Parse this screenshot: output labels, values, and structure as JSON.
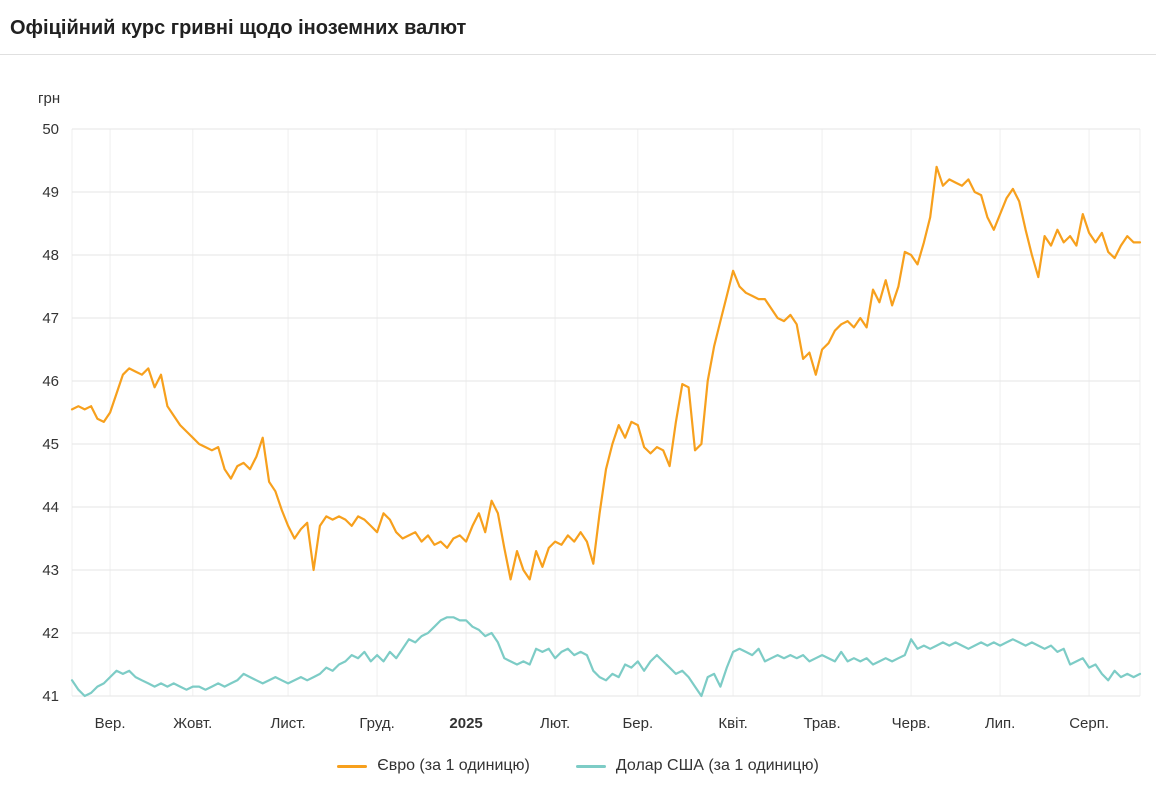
{
  "header": {
    "title": "Офіційний курс гривні щодо іноземних валют"
  },
  "chart_data": {
    "type": "line",
    "title": "Офіційний курс гривні щодо іноземних валют",
    "ylabel": "грн",
    "ylim": [
      41,
      50
    ],
    "yticks": [
      41,
      42,
      43,
      44,
      45,
      46,
      47,
      48,
      49,
      50
    ],
    "grid": true,
    "legend_position": "bottom",
    "colors": {
      "h_grid": "#e6e6e6",
      "v_grid": "#efefef",
      "tick_text": "#333333"
    },
    "x_ticks": [
      {
        "label": "Вер.",
        "index": 6,
        "bold": false
      },
      {
        "label": "Жовт.",
        "index": 19,
        "bold": false
      },
      {
        "label": "Лист.",
        "index": 34,
        "bold": false
      },
      {
        "label": "Груд.",
        "index": 48,
        "bold": false
      },
      {
        "label": "2025",
        "index": 62,
        "bold": true
      },
      {
        "label": "Лют.",
        "index": 76,
        "bold": false
      },
      {
        "label": "Бер.",
        "index": 89,
        "bold": false
      },
      {
        "label": "Квіт.",
        "index": 104,
        "bold": false
      },
      {
        "label": "Трав.",
        "index": 118,
        "bold": false
      },
      {
        "label": "Черв.",
        "index": 132,
        "bold": false
      },
      {
        "label": "Лип.",
        "index": 146,
        "bold": false
      },
      {
        "label": "Серп.",
        "index": 160,
        "bold": false
      }
    ],
    "series": [
      {
        "id": "euro",
        "name": "Євро (за 1 одиницю)",
        "color": "#f7a01d",
        "values": [
          45.55,
          45.6,
          45.55,
          45.6,
          45.4,
          45.35,
          45.5,
          45.8,
          46.1,
          46.2,
          46.15,
          46.1,
          46.2,
          45.9,
          46.1,
          45.6,
          45.45,
          45.3,
          45.2,
          45.1,
          45.0,
          44.95,
          44.9,
          44.95,
          44.6,
          44.45,
          44.65,
          44.7,
          44.6,
          44.8,
          45.1,
          44.4,
          44.25,
          43.95,
          43.7,
          43.5,
          43.65,
          43.75,
          43.0,
          43.7,
          43.85,
          43.8,
          43.85,
          43.8,
          43.7,
          43.85,
          43.8,
          43.7,
          43.6,
          43.9,
          43.8,
          43.6,
          43.5,
          43.55,
          43.6,
          43.45,
          43.55,
          43.4,
          43.45,
          43.35,
          43.5,
          43.55,
          43.45,
          43.7,
          43.9,
          43.6,
          44.1,
          43.9,
          43.35,
          42.85,
          43.3,
          43.0,
          42.85,
          43.3,
          43.05,
          43.35,
          43.45,
          43.4,
          43.55,
          43.45,
          43.6,
          43.45,
          43.1,
          43.9,
          44.6,
          45.0,
          45.3,
          45.1,
          45.35,
          45.3,
          44.95,
          44.85,
          44.95,
          44.9,
          44.65,
          45.35,
          45.95,
          45.9,
          44.9,
          45.0,
          46.0,
          46.55,
          46.95,
          47.35,
          47.75,
          47.5,
          47.4,
          47.35,
          47.3,
          47.3,
          47.15,
          47.0,
          46.95,
          47.05,
          46.9,
          46.35,
          46.45,
          46.1,
          46.5,
          46.6,
          46.8,
          46.9,
          46.95,
          46.85,
          47.0,
          46.85,
          47.45,
          47.25,
          47.6,
          47.2,
          47.5,
          48.05,
          48.0,
          47.85,
          48.2,
          48.6,
          49.4,
          49.1,
          49.2,
          49.15,
          49.1,
          49.2,
          49.0,
          48.95,
          48.6,
          48.4,
          48.65,
          48.9,
          49.05,
          48.85,
          48.4,
          48.0,
          47.65,
          48.3,
          48.15,
          48.4,
          48.2,
          48.3,
          48.15,
          48.65,
          48.35,
          48.2,
          48.35,
          48.05,
          47.95,
          48.15,
          48.3,
          48.2,
          48.2
        ]
      },
      {
        "id": "usd",
        "name": "Долар США (за 1 одиницю)",
        "color": "#7dccc6",
        "values": [
          41.25,
          41.1,
          41.0,
          41.05,
          41.15,
          41.2,
          41.3,
          41.4,
          41.35,
          41.4,
          41.3,
          41.25,
          41.2,
          41.15,
          41.2,
          41.15,
          41.2,
          41.15,
          41.1,
          41.15,
          41.15,
          41.1,
          41.15,
          41.2,
          41.15,
          41.2,
          41.25,
          41.35,
          41.3,
          41.25,
          41.2,
          41.25,
          41.3,
          41.25,
          41.2,
          41.25,
          41.3,
          41.25,
          41.3,
          41.35,
          41.45,
          41.4,
          41.5,
          41.55,
          41.65,
          41.6,
          41.7,
          41.55,
          41.65,
          41.55,
          41.7,
          41.6,
          41.75,
          41.9,
          41.85,
          41.95,
          42.0,
          42.1,
          42.2,
          42.25,
          42.25,
          42.2,
          42.2,
          42.1,
          42.05,
          41.95,
          42.0,
          41.85,
          41.6,
          41.55,
          41.5,
          41.55,
          41.5,
          41.75,
          41.7,
          41.75,
          41.6,
          41.7,
          41.75,
          41.65,
          41.7,
          41.65,
          41.4,
          41.3,
          41.25,
          41.35,
          41.3,
          41.5,
          41.45,
          41.55,
          41.4,
          41.55,
          41.65,
          41.55,
          41.45,
          41.35,
          41.4,
          41.3,
          41.15,
          41.0,
          41.3,
          41.35,
          41.15,
          41.45,
          41.7,
          41.75,
          41.7,
          41.65,
          41.75,
          41.55,
          41.6,
          41.65,
          41.6,
          41.65,
          41.6,
          41.65,
          41.55,
          41.6,
          41.65,
          41.6,
          41.55,
          41.7,
          41.55,
          41.6,
          41.55,
          41.6,
          41.5,
          41.55,
          41.6,
          41.55,
          41.6,
          41.65,
          41.9,
          41.75,
          41.8,
          41.75,
          41.8,
          41.85,
          41.8,
          41.85,
          41.8,
          41.75,
          41.8,
          41.85,
          41.8,
          41.85,
          41.8,
          41.85,
          41.9,
          41.85,
          41.8,
          41.85,
          41.8,
          41.75,
          41.8,
          41.7,
          41.75,
          41.5,
          41.55,
          41.6,
          41.45,
          41.5,
          41.35,
          41.25,
          41.4,
          41.3,
          41.35,
          41.3,
          41.35
        ]
      }
    ]
  }
}
